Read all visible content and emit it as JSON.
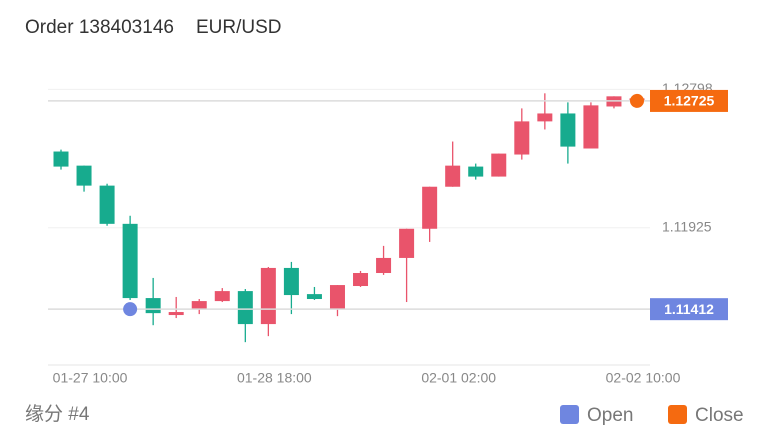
{
  "chart_data": {
    "type": "candlestick",
    "title": "Order 138403146",
    "subtitle": "EUR/USD",
    "footer": "缘分 #4",
    "categories": [
      null,
      "01-27 10:00",
      null,
      null,
      null,
      null,
      null,
      null,
      null,
      "01-28 18:00",
      null,
      null,
      null,
      null,
      null,
      null,
      null,
      "02-01 02:00",
      null,
      null,
      null,
      null,
      null,
      null,
      null,
      "02-02 10:00"
    ],
    "series": [
      {
        "up_color": "#e9546b",
        "down_color": "#17ab8e",
        "open": [
          1.12406,
          1.12317,
          1.12191,
          1.1195,
          1.11482,
          1.11375,
          1.11413,
          1.11463,
          1.11526,
          1.11318,
          1.11672,
          1.11507,
          1.11413,
          1.11558,
          1.1164,
          1.11735,
          1.11919,
          1.12184,
          1.12311,
          1.12248,
          1.12387,
          1.12596,
          1.12646,
          1.12425,
          1.1269,
          1.12728
        ],
        "close": [
          1.12311,
          1.12191,
          1.1195,
          1.11482,
          1.11387,
          1.11394,
          1.11463,
          1.11526,
          1.11318,
          1.11672,
          1.11501,
          1.11476,
          1.11564,
          1.1164,
          1.11735,
          1.11919,
          1.12184,
          1.12317,
          1.12248,
          1.12393,
          1.12596,
          1.12646,
          1.12437,
          1.12697,
          1.12754,
          1.12741
        ],
        "high": [
          1.12418,
          1.12317,
          1.12203,
          1.12001,
          1.11609,
          1.11489,
          1.11476,
          1.11545,
          1.11539,
          1.11678,
          1.1171,
          1.11552,
          1.11564,
          1.11653,
          1.11811,
          1.11919,
          1.12184,
          1.12469,
          1.1233,
          1.12393,
          1.12678,
          1.12773,
          1.12716,
          1.12716,
          1.12754,
          1.12754
        ],
        "low": [
          1.12292,
          1.12153,
          1.11938,
          1.1147,
          1.11311,
          1.11356,
          1.11381,
          1.11457,
          1.11204,
          1.11242,
          1.11381,
          1.1147,
          1.11368,
          1.11552,
          1.11628,
          1.11457,
          1.11836,
          1.12184,
          1.12229,
          1.12248,
          1.12355,
          1.12545,
          1.1233,
          1.12425,
          1.12678,
          1.12722
        ]
      }
    ],
    "markers": [
      {
        "name": "Open",
        "color": "#6f86e0",
        "x": 3,
        "value": 1.11412
      },
      {
        "name": "Close",
        "color": "#f56a10",
        "x": 25,
        "value": 1.12725
      }
    ],
    "ylim": [
      1.1106,
      1.1292
    ],
    "yticks": [
      1.11925,
      1.12798
    ],
    "grid": true
  }
}
